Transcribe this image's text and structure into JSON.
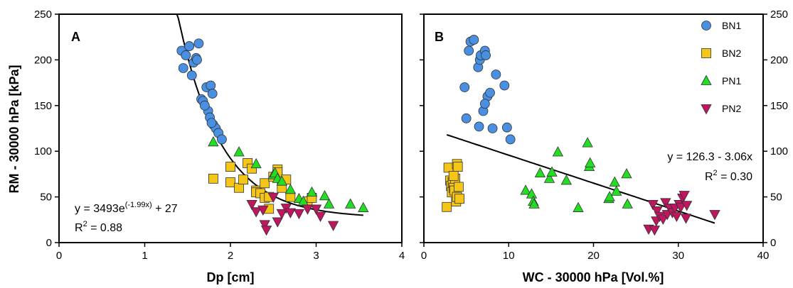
{
  "colors": {
    "BN1": "#4a90e2",
    "BN2": "#f5c518",
    "PN1": "#22dd22",
    "PN2": "#c0155f",
    "fit": "#000000"
  },
  "legend": {
    "items": [
      {
        "name": "BN1",
        "marker": "circle"
      },
      {
        "name": "BN2",
        "marker": "square"
      },
      {
        "name": "PN1",
        "marker": "triangle-up"
      },
      {
        "name": "PN2",
        "marker": "triangle-down"
      }
    ],
    "position": "top-right of panel B"
  },
  "chart_data": [
    {
      "type": "scatter",
      "panel": "A",
      "xlabel": "Dp [cm]",
      "ylabel": "RM - 30000 hPa [kPa]",
      "xlim": [
        0,
        4
      ],
      "ylim": [
        0,
        250
      ],
      "xticks": [
        0,
        1,
        2,
        3,
        4
      ],
      "yticks": [
        0,
        50,
        100,
        150,
        200,
        250
      ],
      "grid": false,
      "fit": {
        "kind": "exponential",
        "a": 3493,
        "b": -1.99,
        "c": 27,
        "x_range": [
          1.3,
          3.55
        ],
        "equation_main": "y = 3493e",
        "equation_exp": "(-1.99x)",
        "equation_tail": " + 27",
        "r2_prefix": "R",
        "r2_sup": "2",
        "r2_value": " = 0.88"
      },
      "series": [
        {
          "name": "BN1",
          "points": [
            [
              1.43,
              210
            ],
            [
              1.45,
              191
            ],
            [
              1.48,
              205
            ],
            [
              1.52,
              215
            ],
            [
              1.55,
              183
            ],
            [
              1.57,
              197
            ],
            [
              1.6,
              202
            ],
            [
              1.61,
              200
            ],
            [
              1.63,
              218
            ],
            [
              1.66,
              157
            ],
            [
              1.68,
              155
            ],
            [
              1.72,
              170
            ],
            [
              1.74,
              144
            ],
            [
              1.76,
              137
            ],
            [
              1.77,
              172
            ],
            [
              1.79,
              163
            ],
            [
              1.8,
              129
            ],
            [
              1.83,
              125
            ],
            [
              1.86,
              120
            ],
            [
              1.9,
              113
            ],
            [
              1.78,
              131
            ],
            [
              1.7,
              150
            ]
          ]
        },
        {
          "name": "BN2",
          "points": [
            [
              1.8,
              70
            ],
            [
              2.0,
              83
            ],
            [
              2.0,
              66
            ],
            [
              2.1,
              60
            ],
            [
              2.15,
              69
            ],
            [
              2.2,
              87
            ],
            [
              2.25,
              81
            ],
            [
              2.3,
              57
            ],
            [
              2.3,
              55
            ],
            [
              2.35,
              54
            ],
            [
              2.4,
              65
            ],
            [
              2.4,
              49
            ],
            [
              2.45,
              37
            ],
            [
              2.5,
              72
            ],
            [
              2.55,
              80
            ],
            [
              2.55,
              77
            ],
            [
              2.6,
              60
            ],
            [
              2.65,
              69
            ],
            [
              2.7,
              50
            ],
            [
              2.9,
              45
            ],
            [
              2.95,
              49
            ],
            [
              2.45,
              50
            ]
          ]
        },
        {
          "name": "PN1",
          "points": [
            [
              1.8,
              110
            ],
            [
              2.1,
              99
            ],
            [
              2.3,
              86
            ],
            [
              2.5,
              74
            ],
            [
              2.52,
              76
            ],
            [
              2.55,
              70
            ],
            [
              2.6,
              67
            ],
            [
              2.7,
              58
            ],
            [
              2.8,
              48
            ],
            [
              2.95,
              55
            ],
            [
              3.1,
              51
            ],
            [
              3.15,
              42
            ],
            [
              3.4,
              42
            ],
            [
              3.55,
              38
            ],
            [
              2.85,
              45
            ]
          ]
        },
        {
          "name": "PN2",
          "points": [
            [
              2.25,
              42
            ],
            [
              2.3,
              34
            ],
            [
              2.38,
              36
            ],
            [
              2.4,
              20
            ],
            [
              2.42,
              14
            ],
            [
              2.5,
              50
            ],
            [
              2.55,
              23
            ],
            [
              2.6,
              32
            ],
            [
              2.65,
              38
            ],
            [
              2.7,
              33
            ],
            [
              2.8,
              32
            ],
            [
              2.9,
              37
            ],
            [
              3.0,
              37
            ],
            [
              3.05,
              29
            ],
            [
              3.2,
              19
            ]
          ]
        }
      ]
    },
    {
      "type": "scatter",
      "panel": "B",
      "xlabel": "WC - 30000 hPa [Vol.%]",
      "ylabel": "",
      "xlim": [
        0,
        40
      ],
      "ylim": [
        0,
        250
      ],
      "xticks": [
        0,
        10,
        20,
        30,
        40
      ],
      "yticks": [
        0,
        50,
        100,
        150,
        200,
        250
      ],
      "grid": false,
      "fit": {
        "kind": "linear",
        "intercept": 126.3,
        "slope": -3.06,
        "x_range": [
          2.7,
          34.3
        ],
        "equation_main": "y = 126.3 - 3.06x",
        "r2_prefix": "R",
        "r2_sup": "2",
        "r2_value": " = 0.30"
      },
      "series": [
        {
          "name": "BN1",
          "points": [
            [
              4.8,
              170
            ],
            [
              5.0,
              136
            ],
            [
              5.3,
              210
            ],
            [
              5.5,
              220
            ],
            [
              5.9,
              222
            ],
            [
              6.4,
              192
            ],
            [
              6.6,
              200
            ],
            [
              6.7,
              205
            ],
            [
              6.5,
              127
            ],
            [
              7.0,
              144
            ],
            [
              7.2,
              210
            ],
            [
              7.3,
              205
            ],
            [
              7.5,
              160
            ],
            [
              7.8,
              164
            ],
            [
              8.1,
              125
            ],
            [
              8.5,
              184
            ],
            [
              9.5,
              172
            ],
            [
              9.8,
              126
            ],
            [
              10.2,
              113
            ],
            [
              7.2,
              152
            ]
          ]
        },
        {
          "name": "BN2",
          "points": [
            [
              2.7,
              39
            ],
            [
              2.9,
              82
            ],
            [
              3.1,
              68
            ],
            [
              3.2,
              62
            ],
            [
              3.3,
              55
            ],
            [
              3.4,
              66
            ],
            [
              3.5,
              60
            ],
            [
              3.6,
              57
            ],
            [
              3.7,
              70
            ],
            [
              3.8,
              45
            ],
            [
              3.9,
              50
            ],
            [
              3.9,
              86
            ],
            [
              4.0,
              83
            ],
            [
              4.1,
              61
            ],
            [
              4.2,
              48
            ],
            [
              3.5,
              73
            ]
          ]
        },
        {
          "name": "PN1",
          "points": [
            [
              12.0,
              57
            ],
            [
              12.7,
              53
            ],
            [
              12.9,
              45
            ],
            [
              13.0,
              42
            ],
            [
              13.7,
              76
            ],
            [
              14.8,
              70
            ],
            [
              15.1,
              77
            ],
            [
              15.8,
              99
            ],
            [
              16.8,
              68
            ],
            [
              18.2,
              38
            ],
            [
              19.3,
              109
            ],
            [
              19.5,
              83
            ],
            [
              19.6,
              87
            ],
            [
              21.8,
              48
            ],
            [
              21.9,
              50
            ],
            [
              22.5,
              66
            ],
            [
              22.7,
              56
            ],
            [
              23.9,
              75
            ],
            [
              24.0,
              42
            ]
          ]
        },
        {
          "name": "PN2",
          "points": [
            [
              26.5,
              15
            ],
            [
              27.0,
              42
            ],
            [
              27.2,
              14
            ],
            [
              27.4,
              24
            ],
            [
              27.5,
              35
            ],
            [
              27.8,
              29
            ],
            [
              28.2,
              26
            ],
            [
              28.5,
              44
            ],
            [
              28.7,
              31
            ],
            [
              29.0,
              38
            ],
            [
              29.3,
              33
            ],
            [
              29.6,
              38
            ],
            [
              29.8,
              29
            ],
            [
              30.1,
              42
            ],
            [
              30.3,
              39
            ],
            [
              30.5,
              49
            ],
            [
              30.7,
              52
            ],
            [
              30.9,
              27
            ],
            [
              31.0,
              41
            ],
            [
              34.3,
              31
            ]
          ]
        }
      ]
    }
  ]
}
